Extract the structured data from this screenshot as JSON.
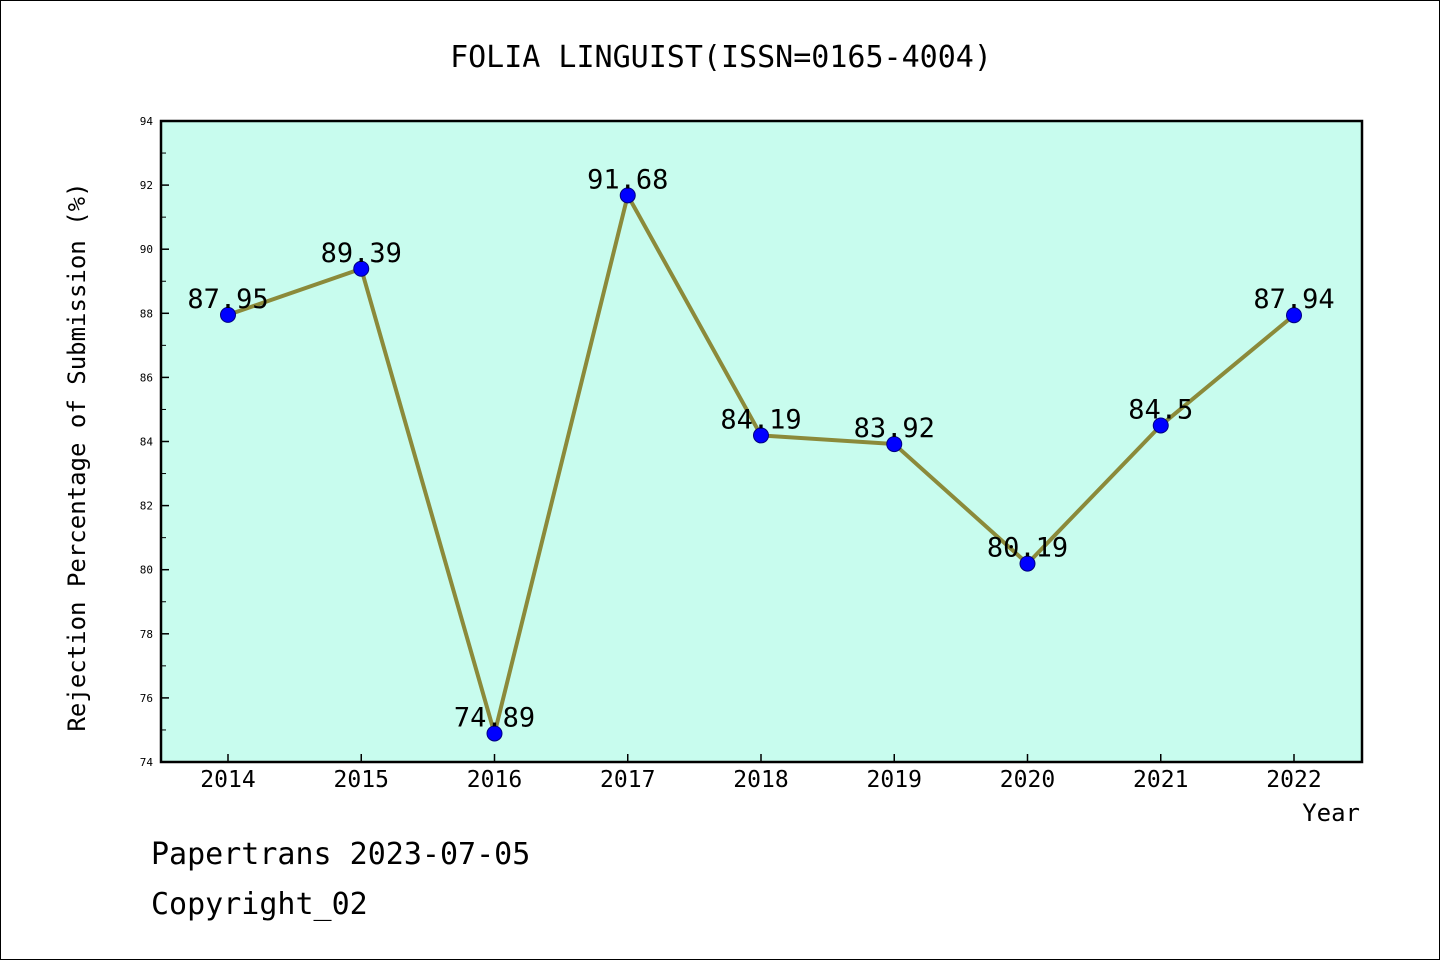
{
  "chart_data": {
    "type": "line",
    "title": "FOLIA LINGUIST(ISSN=0165-4004)",
    "xlabel": "Year",
    "ylabel": "Rejection Percentage of Submission (%)",
    "categories": [
      "2014",
      "2015",
      "2016",
      "2017",
      "2018",
      "2019",
      "2020",
      "2021",
      "2022"
    ],
    "series": [
      {
        "values": [
          87.95,
          89.39,
          74.89,
          91.68,
          84.19,
          83.92,
          80.19,
          84.5,
          87.94
        ],
        "labels": [
          "87.95",
          "89.39",
          "74.89",
          "91.68",
          "84.19",
          "83.92",
          "80.19",
          "84.5",
          "87.94"
        ]
      }
    ],
    "ylim": [
      74,
      94
    ],
    "yticks": [
      "74",
      "76",
      "78",
      "80",
      "82",
      "84",
      "86",
      "88",
      "90",
      "92",
      "94"
    ],
    "grid": false,
    "colors": {
      "plot_background": "#c8fcee",
      "line": "#8b8a3a",
      "marker": "#0000ff",
      "marker_edge": "#000080",
      "axes": "#000000"
    }
  },
  "footer": {
    "line1": "Papertrans 2023-07-05",
    "line2": "Copyright_02"
  }
}
